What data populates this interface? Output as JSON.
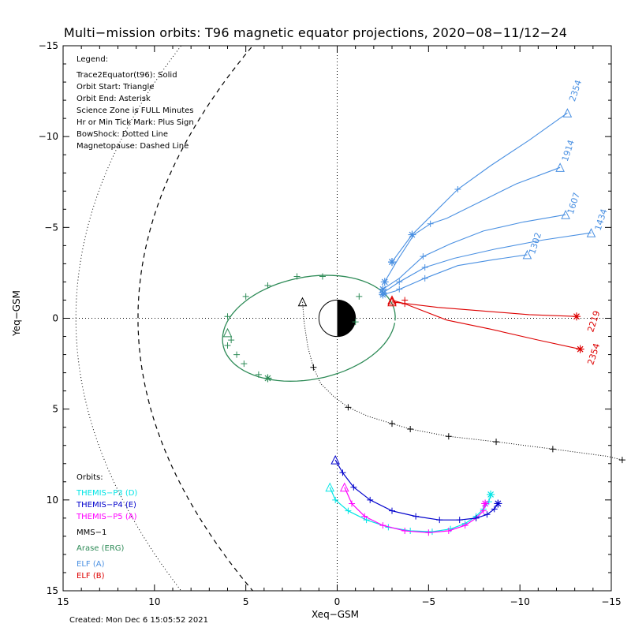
{
  "chart_data": {
    "type": "line",
    "title": "Multi−mission orbits: T96 magnetic equator projections, 2020−08−11/12−24",
    "xlabel": "Xeq−GSM",
    "ylabel": "Yeq−GSM",
    "xlim": [
      15,
      -15
    ],
    "ylim": [
      -15,
      15
    ],
    "x_ticks": [
      "15",
      "10",
      "5",
      "0",
      "−5",
      "−10",
      "−15"
    ],
    "y_ticks": [
      "−15",
      "−10",
      "−5",
      "0",
      "5",
      "10",
      "15"
    ],
    "grid": false,
    "legend_position": "top-left",
    "legend_title": "Legend:",
    "legend_lines": [
      "Trace2Equator(t96): Solid",
      "Orbit Start: Triangle",
      "Orbit End: Asterisk",
      "Science Zone is FULL Minutes",
      "Hr or Min Tick Mark: Plus Sign",
      "BowShock: Dotted Line",
      "Magnetopause: Dashed Line"
    ],
    "orbits_title": "Orbits:",
    "series": [
      {
        "name": "THEMIS−P3 (D)",
        "color": "#00e5e5",
        "x": [
          0.4,
          0.1,
          -0.6,
          -1.6,
          -2.8,
          -4.0,
          -5.2,
          -6.2,
          -7.0,
          -7.6,
          -8.0,
          -8.3,
          -8.4
        ],
        "y": [
          9.3,
          10.0,
          10.6,
          11.1,
          11.5,
          11.7,
          11.75,
          11.6,
          11.3,
          10.9,
          10.5,
          10.1,
          9.7
        ]
      },
      {
        "name": "THEMIS−P4 (E)",
        "color": "#0000cc",
        "x": [
          0.1,
          -0.3,
          -0.9,
          -1.8,
          -3.0,
          -4.3,
          -5.6,
          -6.7,
          -7.6,
          -8.2,
          -8.6,
          -8.8
        ],
        "y": [
          7.8,
          8.5,
          9.3,
          10.0,
          10.6,
          10.9,
          11.1,
          11.1,
          11.0,
          10.8,
          10.5,
          10.2
        ]
      },
      {
        "name": "THEMIS−P5 (A)",
        "color": "#ff00ff",
        "x": [
          -0.4,
          -0.8,
          -1.5,
          -2.5,
          -3.7,
          -5.0,
          -6.1,
          -7.0,
          -7.6,
          -8.0,
          -8.1
        ],
        "y": [
          9.3,
          10.2,
          10.9,
          11.4,
          11.7,
          11.8,
          11.7,
          11.4,
          11.0,
          10.6,
          10.2
        ]
      },
      {
        "name": "MMS−1",
        "color": "#000000",
        "x": [
          1.9,
          1.8,
          1.6,
          1.3,
          0.9,
          0.2,
          -0.6,
          -1.7,
          -3.0,
          -4.0,
          -6.1,
          -8.7,
          -11.8,
          -14.8,
          -15.6
        ],
        "y": [
          -0.9,
          0.3,
          1.6,
          2.7,
          3.6,
          4.3,
          4.9,
          5.4,
          5.8,
          6.1,
          6.5,
          6.8,
          7.2,
          7.6,
          7.8
        ]
      },
      {
        "name": "Arase (ERG)",
        "color": "#2e8b57",
        "x": [
          5.8,
          5.5,
          4.8,
          3.8,
          2.2,
          0.8,
          -0.6,
          -1.2,
          -1.3,
          -1.0,
          -0.3,
          0.8,
          2.2,
          3.6,
          4.7,
          5.5,
          6.0,
          6.2,
          5.8
        ],
        "y": [
          -0.8,
          -0.2,
          0.4,
          0.9,
          1.6,
          2.2,
          2.6,
          3.0,
          3.5,
          -1.9,
          -2.2,
          -2.3,
          -2.2,
          -1.9,
          -1.3,
          -0.5,
          0.4,
          1.6,
          3.0
        ]
      },
      {
        "name": "ELF (A)",
        "color": "#4a90e2",
        "x": [
          -2.5,
          -3.0,
          -4.0,
          -5.2,
          -6.6,
          -8.5,
          -10.5,
          -12.6
        ],
        "y": [
          -2.0,
          -3.1,
          -4.6,
          -5.9,
          -7.1,
          -8.5,
          -9.9,
          -11.3
        ]
      },
      {
        "name": "ELF (B)",
        "color": "#dd0000",
        "x": [
          -3.0,
          -3.7,
          -6.0,
          -8.5,
          -11.0,
          -13.1
        ],
        "y": [
          -1.0,
          -1.0,
          -0.8,
          -0.5,
          -0.2,
          -0.1
        ]
      }
    ],
    "elf_a_labels": [
      "2354",
      "1914",
      "1607",
      "1434",
      "1302"
    ],
    "elf_b_labels": [
      "2219",
      "2354"
    ]
  },
  "footer": "Created: Mon Dec  6 15:05:52 2021"
}
